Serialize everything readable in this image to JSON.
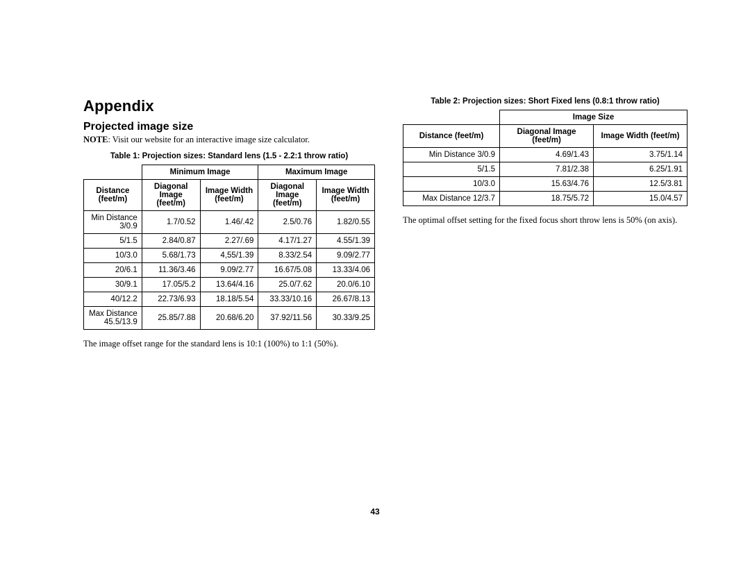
{
  "headings": {
    "appendix": "Appendix",
    "projected_image_size": "Projected image size"
  },
  "note": {
    "label": "NOTE",
    "text": ": Visit our website for an interactive image size calculator."
  },
  "table1": {
    "caption": "Table 1: Projection sizes: Standard lens (1.5 - 2.2:1 throw ratio)",
    "group_headers": {
      "min": "Minimum Image",
      "max": "Maximum Image"
    },
    "col_headers": {
      "distance": "Distance (feet/m)",
      "diag": "Diagonal Image (feet/m)",
      "width": "Image Width (feet/m)"
    },
    "rows": [
      {
        "dist": "Min Distance 3/0.9",
        "min_diag": "1.7/0.52",
        "min_w": "1.46/.42",
        "max_diag": "2.5/0.76",
        "max_w": "1.82/0.55"
      },
      {
        "dist": "5/1.5",
        "min_diag": "2.84/0.87",
        "min_w": "2.27/.69",
        "max_diag": "4.17/1.27",
        "max_w": "4.55/1.39"
      },
      {
        "dist": "10/3.0",
        "min_diag": "5.68/1.73",
        "min_w": "4,55/1.39",
        "max_diag": "8.33/2.54",
        "max_w": "9.09/2.77"
      },
      {
        "dist": "20/6.1",
        "min_diag": "11.36/3.46",
        "min_w": "9.09/2.77",
        "max_diag": "16.67/5.08",
        "max_w": "13.33/4.06"
      },
      {
        "dist": "30/9.1",
        "min_diag": "17.05/5.2",
        "min_w": "13.64/4.16",
        "max_diag": "25.0/7.62",
        "max_w": "20.0/6.10"
      },
      {
        "dist": "40/12.2",
        "min_diag": "22.73/6.93",
        "min_w": "18.18/5.54",
        "max_diag": "33.33/10.16",
        "max_w": "26.67/8.13"
      },
      {
        "dist": "Max Distance 45.5/13.9",
        "min_diag": "25.85/7.88",
        "min_w": "20.68/6.20",
        "max_diag": "37.92/11.56",
        "max_w": "30.33/9.25"
      }
    ]
  },
  "footnote1": "The image offset range for the standard lens is 10:1 (100%) to 1:1 (50%).",
  "table2": {
    "caption": "Table 2: Projection sizes: Short Fixed lens (0.8:1 throw ratio)",
    "group_header": "Image Size",
    "col_headers": {
      "distance": "Distance (feet/m)",
      "diag": "Diagonal Image (feet/m)",
      "width": "Image Width (feet/m)"
    },
    "rows": [
      {
        "dist": "Min Distance 3/0.9",
        "diag": "4.69/1.43",
        "w": "3.75/1.14"
      },
      {
        "dist": "5/1.5",
        "diag": "7.81/2.38",
        "w": "6.25/1.91"
      },
      {
        "dist": "10/3.0",
        "diag": "15.63/4.76",
        "w": "12.5/3.81"
      },
      {
        "dist": "Max Distance 12/3.7",
        "diag": "18.75/5.72",
        "w": "15.0/4.57"
      }
    ]
  },
  "footnote2": "The optimal offset setting for the fixed focus short throw lens is 50% (on axis).",
  "page_number": "43"
}
